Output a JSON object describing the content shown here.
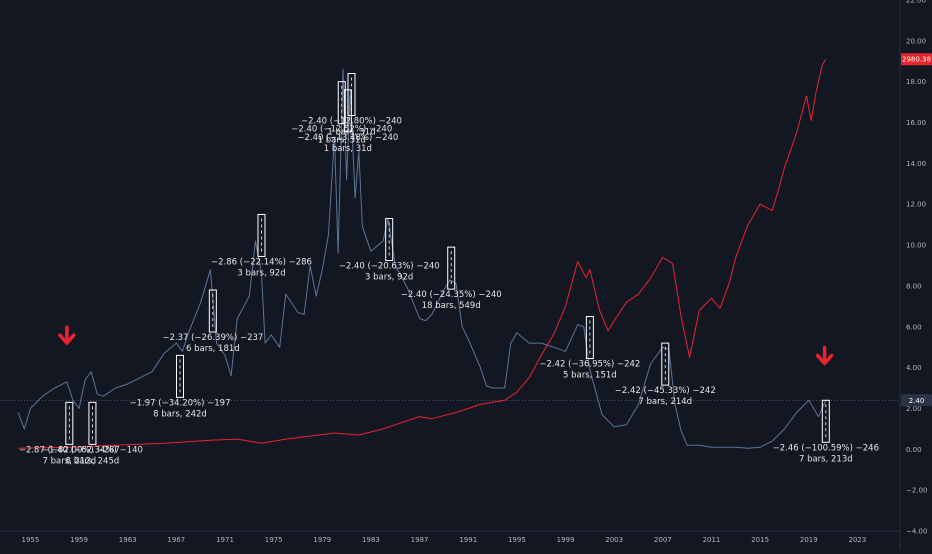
{
  "chart_data": {
    "type": "line",
    "x_ticks": [
      "1955",
      "1959",
      "1963",
      "1967",
      "1971",
      "1975",
      "1979",
      "1983",
      "1987",
      "1991",
      "1995",
      "1999",
      "2003",
      "2007",
      "2011",
      "2015",
      "2019",
      "2023"
    ],
    "y_ticks": [
      "−4.00",
      "−2.00",
      "0.00",
      "2.00",
      "4.00",
      "6.00",
      "8.00",
      "10.00",
      "12.00",
      "14.00",
      "16.00",
      "18.00",
      "20.00",
      "22.00"
    ],
    "ylim": [
      -4,
      22
    ],
    "xlim": [
      1952.5,
      2026.5
    ],
    "grid": false,
    "series": [
      {
        "color": "#e8242f",
        "last_value_label": "2980.38",
        "last_value": 19.1,
        "points": [
          [
            1954.0,
            0.05
          ],
          [
            1958,
            0.1
          ],
          [
            1962,
            0.2
          ],
          [
            1966,
            0.3
          ],
          [
            1970,
            0.45
          ],
          [
            1972,
            0.5
          ],
          [
            1974,
            0.3
          ],
          [
            1976,
            0.5
          ],
          [
            1980,
            0.8
          ],
          [
            1982,
            0.7
          ],
          [
            1984,
            1.0
          ],
          [
            1986,
            1.4
          ],
          [
            1987,
            1.6
          ],
          [
            1988,
            1.5
          ],
          [
            1990,
            1.8
          ],
          [
            1992,
            2.2
          ],
          [
            1994,
            2.4
          ],
          [
            1995,
            2.8
          ],
          [
            1996,
            3.5
          ],
          [
            1997,
            4.6
          ],
          [
            1998,
            5.6
          ],
          [
            1999,
            7.0
          ],
          [
            2000,
            9.2
          ],
          [
            2000.7,
            8.4
          ],
          [
            2001,
            8.8
          ],
          [
            2001.8,
            6.8
          ],
          [
            2002.5,
            5.8
          ],
          [
            2003,
            6.3
          ],
          [
            2004,
            7.2
          ],
          [
            2005,
            7.6
          ],
          [
            2006,
            8.4
          ],
          [
            2007,
            9.4
          ],
          [
            2007.8,
            9.1
          ],
          [
            2008.5,
            6.5
          ],
          [
            2009.2,
            4.5
          ],
          [
            2010,
            6.8
          ],
          [
            2011,
            7.4
          ],
          [
            2011.7,
            6.9
          ],
          [
            2012.5,
            8.2
          ],
          [
            2013,
            9.4
          ],
          [
            2014,
            11.0
          ],
          [
            2015,
            12.0
          ],
          [
            2016,
            11.7
          ],
          [
            2016.5,
            12.7
          ],
          [
            2017,
            13.8
          ],
          [
            2018,
            15.5
          ],
          [
            2018.8,
            17.3
          ],
          [
            2019.2,
            16.1
          ],
          [
            2019.6,
            17.5
          ],
          [
            2020.1,
            18.8
          ],
          [
            2020.4,
            19.1
          ]
        ]
      },
      {
        "color": "#5b7599",
        "last_value_label": "2.40",
        "last_value": 2.4,
        "points": [
          [
            1954.0,
            1.8
          ],
          [
            1954.5,
            1.0
          ],
          [
            1955,
            2.0
          ],
          [
            1956,
            2.6
          ],
          [
            1957,
            3.0
          ],
          [
            1958,
            3.3
          ],
          [
            1958.5,
            2.4
          ],
          [
            1959,
            2.0
          ],
          [
            1959.5,
            3.4
          ],
          [
            1960,
            3.8
          ],
          [
            1960.5,
            2.7
          ],
          [
            1961,
            2.6
          ],
          [
            1962,
            3.0
          ],
          [
            1963,
            3.2
          ],
          [
            1964,
            3.5
          ],
          [
            1965,
            3.8
          ],
          [
            1966,
            4.7
          ],
          [
            1967,
            5.2
          ],
          [
            1967.5,
            4.8
          ],
          [
            1968,
            5.7
          ],
          [
            1969,
            7.2
          ],
          [
            1969.8,
            8.8
          ],
          [
            1970.3,
            5.2
          ],
          [
            1971,
            4.6
          ],
          [
            1971.5,
            3.6
          ],
          [
            1972,
            6.4
          ],
          [
            1973,
            7.5
          ],
          [
            1973.5,
            10.2
          ],
          [
            1974,
            8.6
          ],
          [
            1974.3,
            5.2
          ],
          [
            1974.8,
            5.6
          ],
          [
            1975.5,
            5.0
          ],
          [
            1976,
            7.6
          ],
          [
            1977,
            6.7
          ],
          [
            1977.5,
            6.6
          ],
          [
            1978,
            9.0
          ],
          [
            1978.5,
            7.5
          ],
          [
            1979,
            8.8
          ],
          [
            1979.5,
            10.5
          ],
          [
            1980,
            15.3
          ],
          [
            1980.3,
            9.6
          ],
          [
            1980.7,
            18.6
          ],
          [
            1981,
            13.2
          ],
          [
            1981.3,
            17.6
          ],
          [
            1981.7,
            12.3
          ],
          [
            1982,
            14.6
          ],
          [
            1982.3,
            10.9
          ],
          [
            1983,
            9.7
          ],
          [
            1984,
            10.2
          ],
          [
            1984.4,
            11.3
          ],
          [
            1985,
            9.0
          ],
          [
            1986,
            7.9
          ],
          [
            1987,
            6.4
          ],
          [
            1987.5,
            6.3
          ],
          [
            1988,
            6.6
          ],
          [
            1989,
            7.8
          ],
          [
            1989.5,
            8.3
          ],
          [
            1990,
            8.1
          ],
          [
            1990.5,
            6.0
          ],
          [
            1991,
            5.4
          ],
          [
            1992,
            4.0
          ],
          [
            1992.5,
            3.1
          ],
          [
            1993,
            3.0
          ],
          [
            1994,
            3.0
          ],
          [
            1994.5,
            5.2
          ],
          [
            1995,
            5.7
          ],
          [
            1996,
            5.2
          ],
          [
            1997,
            5.2
          ],
          [
            1998,
            5.0
          ],
          [
            1999,
            4.8
          ],
          [
            2000,
            6.1
          ],
          [
            2000.5,
            6.0
          ],
          [
            2001,
            3.9
          ],
          [
            2002,
            1.7
          ],
          [
            2003,
            1.1
          ],
          [
            2004,
            1.2
          ],
          [
            2005,
            2.2
          ],
          [
            2006,
            4.2
          ],
          [
            2007,
            5.0
          ],
          [
            2007.5,
            4.9
          ],
          [
            2008,
            2.2
          ],
          [
            2008.5,
            0.9
          ],
          [
            2009,
            0.2
          ],
          [
            2010,
            0.2
          ],
          [
            2011,
            0.1
          ],
          [
            2012,
            0.1
          ],
          [
            2013,
            0.1
          ],
          [
            2014,
            0.05
          ],
          [
            2015,
            0.1
          ],
          [
            2016,
            0.4
          ],
          [
            2017,
            1.0
          ],
          [
            2018,
            1.8
          ],
          [
            2019,
            2.4
          ],
          [
            2019.8,
            1.6
          ],
          [
            2020.4,
            2.4
          ]
        ]
      }
    ],
    "annotations": [
      {
        "x": 1958.2,
        "y": 2.3,
        "line1": "−2.87 (−82.00%) −287",
        "line2": "7 bars, 212d"
      },
      {
        "x": 1960.1,
        "y": 2.3,
        "line1": "−1.40 (−62.34%) −140",
        "line2": "8 bars, 245d"
      },
      {
        "x": 1967.3,
        "y": 4.6,
        "line1": "−1.97 (−34.20%) −197",
        "line2": "8 bars, 242d"
      },
      {
        "x": 1970.0,
        "y": 7.8,
        "line1": "−2.37 (−26.39%) −237",
        "line2": "6 bars, 181d"
      },
      {
        "x": 1974.0,
        "y": 11.5,
        "line1": "−2.86 (−22.14%) −286",
        "line2": "3 bars, 92d"
      },
      {
        "x": 1980.6,
        "y": 18.0,
        "line1": "−2.40 (−12.52%) −240",
        "line2": "1 bars, 31d"
      },
      {
        "x": 1981.4,
        "y": 18.4,
        "line1": "−2.40 (−12.80%) −240",
        "line2": "1 bars, 31d"
      },
      {
        "x": 1981.1,
        "y": 17.6,
        "line1": "−2.40 (−13.48%) −240",
        "line2": "1 bars, 31d"
      },
      {
        "x": 1984.5,
        "y": 11.3,
        "line1": "−2.40 (−20.63%) −240",
        "line2": "3 bars, 92d"
      },
      {
        "x": 1989.6,
        "y": 9.9,
        "line1": "−2.40 (−24.35%) −240",
        "line2": "18 bars, 549d"
      },
      {
        "x": 2001.0,
        "y": 6.5,
        "line1": "−2.42 (−36.95%) −242",
        "line2": "5 bars, 151d"
      },
      {
        "x": 2007.2,
        "y": 5.2,
        "line1": "−2.42 (−45.33%) −242",
        "line2": "7 bars, 214d"
      },
      {
        "x": 2020.4,
        "y": 2.4,
        "line1": "−2.46 (−100.59%) −246",
        "line2": "7 bars, 213d"
      }
    ],
    "markers": [
      {
        "x": 1958.0,
        "y": 5.3,
        "type": "arrow-down"
      },
      {
        "x": 2020.3,
        "y": 4.3,
        "type": "arrow-down"
      }
    ],
    "price_line_y": 2.4
  }
}
